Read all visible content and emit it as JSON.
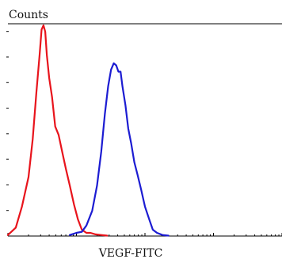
{
  "chart_data": {
    "type": "line",
    "ylabel": "Counts",
    "xlabel": "VEGF-FITC",
    "xscale": "log",
    "xlim": [
      1,
      10000
    ],
    "ylim": [
      0,
      100
    ],
    "grid": false,
    "legend": "none",
    "series": [
      {
        "color": "#e8141c",
        "x": [
          1,
          1.3,
          1.6,
          2.0,
          2.3,
          2.6,
          2.9,
          3.1,
          3.3,
          3.5,
          3.7,
          4.0,
          4.4,
          4.9,
          5.5,
          6.2,
          7.0,
          8.0,
          9.2,
          10.5,
          12,
          14,
          16,
          19,
          23,
          28
        ],
        "y": [
          0.5,
          4,
          14,
          28,
          46,
          68,
          86,
          98,
          100,
          97,
          86,
          75,
          66,
          52,
          48,
          40,
          32,
          24,
          15,
          8,
          3,
          1.5,
          1.5,
          0.8,
          0.5,
          0.2
        ]
      },
      {
        "color": "#1c1cd2",
        "x": [
          8,
          10,
          12,
          14,
          17,
          20,
          23,
          26,
          29,
          32,
          35,
          38,
          41,
          44,
          47,
          52,
          57,
          63,
          70,
          78,
          88,
          100,
          115,
          130,
          150,
          180,
          220
        ],
        "y": [
          0.5,
          1.5,
          2,
          5,
          12,
          24,
          40,
          58,
          71,
          79,
          82,
          81,
          78,
          78,
          71,
          62,
          51,
          44,
          35,
          29,
          22,
          14,
          8,
          3,
          1.5,
          0.5,
          0.2
        ]
      }
    ]
  }
}
